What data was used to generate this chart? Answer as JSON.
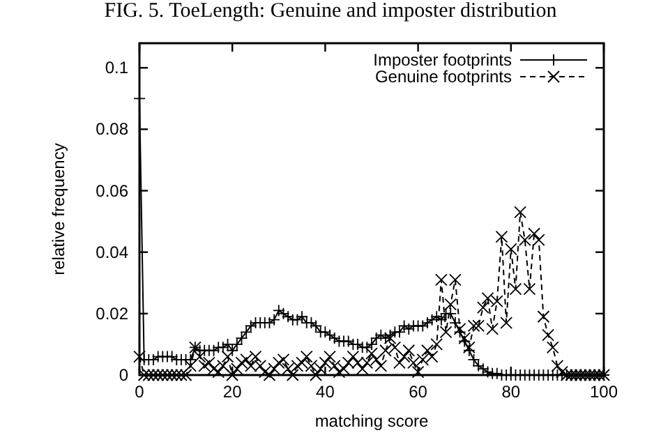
{
  "chart_data": {
    "type": "line",
    "title": "FIG. 5. ToeLength: Genuine and imposter distribution",
    "xlabel": "matching score",
    "ylabel": "relative frequency",
    "x": [
      0,
      1,
      2,
      3,
      4,
      5,
      6,
      7,
      8,
      9,
      10,
      11,
      12,
      13,
      14,
      15,
      16,
      17,
      18,
      19,
      20,
      21,
      22,
      23,
      24,
      25,
      26,
      27,
      28,
      29,
      30,
      31,
      32,
      33,
      34,
      35,
      36,
      37,
      38,
      39,
      40,
      41,
      42,
      43,
      44,
      45,
      46,
      47,
      48,
      49,
      50,
      51,
      52,
      53,
      54,
      55,
      56,
      57,
      58,
      59,
      60,
      61,
      62,
      63,
      64,
      65,
      66,
      67,
      68,
      69,
      70,
      71,
      72,
      73,
      74,
      75,
      76,
      77,
      78,
      79,
      80,
      81,
      82,
      83,
      84,
      85,
      86,
      87,
      88,
      89,
      90,
      91,
      92,
      93,
      94,
      95,
      96,
      97,
      98,
      99,
      100
    ],
    "series": [
      {
        "name": "Imposter footprints",
        "color": "#000000",
        "line_style": "solid",
        "marker": "plus",
        "values": [
          0.09,
          0.005,
          0.005,
          0.005,
          0.006,
          0.006,
          0.006,
          0.006,
          0.005,
          0.005,
          0.005,
          0.005,
          0.009,
          0.008,
          0.008,
          0.008,
          0.008,
          0.009,
          0.009,
          0.01,
          0.008,
          0.01,
          0.012,
          0.014,
          0.016,
          0.017,
          0.017,
          0.017,
          0.017,
          0.018,
          0.021,
          0.02,
          0.019,
          0.018,
          0.018,
          0.019,
          0.017,
          0.017,
          0.016,
          0.014,
          0.014,
          0.013,
          0.012,
          0.011,
          0.011,
          0.011,
          0.01,
          0.01,
          0.009,
          0.009,
          0.01,
          0.012,
          0.013,
          0.012,
          0.013,
          0.014,
          0.014,
          0.016,
          0.015,
          0.016,
          0.016,
          0.016,
          0.017,
          0.018,
          0.019,
          0.018,
          0.02,
          0.02,
          0.017,
          0.014,
          0.011,
          0.008,
          0.005,
          0.003,
          0.002,
          0.001,
          0.0005,
          0.0005,
          0,
          0,
          0,
          0,
          0,
          0,
          0,
          0,
          0,
          0,
          0,
          0,
          0,
          0,
          0,
          0,
          0,
          0,
          0,
          0,
          0,
          0,
          0
        ]
      },
      {
        "name": "Genuine footprints",
        "color": "#000000",
        "line_style": "dashed",
        "marker": "cross",
        "values": [
          0.006,
          0,
          0,
          0,
          0,
          0,
          0,
          0,
          0,
          0,
          0,
          0.003,
          0.009,
          0.006,
          0.003,
          0.004,
          0.002,
          0.001,
          0.003,
          0.006,
          0,
          0.002,
          0.004,
          0.005,
          0.003,
          0.006,
          0.003,
          0.001,
          0,
          0.002,
          0.004,
          0.005,
          0.002,
          0,
          0.003,
          0.004,
          0.006,
          0.003,
          0,
          0.002,
          0.004,
          0.006,
          0.003,
          0.001,
          0.002,
          0.004,
          0.006,
          0.004,
          0.002,
          0.004,
          0.007,
          0.005,
          0.003,
          0.008,
          0.012,
          0.009,
          0.004,
          0.006,
          0.008,
          0.004,
          0.001,
          0.005,
          0.008,
          0.006,
          0.01,
          0.031,
          0.014,
          0.023,
          0.031,
          0.015,
          0.012,
          0.009,
          0.016,
          0.016,
          0.022,
          0.025,
          0.015,
          0.024,
          0.045,
          0.017,
          0.041,
          0.028,
          0.053,
          0.044,
          0.028,
          0.046,
          0.044,
          0.019,
          0.013,
          0.009,
          0.003,
          0.001,
          0,
          0,
          0,
          0,
          0,
          0,
          0,
          0,
          0
        ]
      }
    ],
    "xlim": [
      0,
      100
    ],
    "xticks": [
      0,
      20,
      40,
      60,
      80,
      100
    ],
    "ylim": [
      0,
      0.108
    ],
    "yticks": [
      0,
      0.02,
      0.04,
      0.06,
      0.08,
      0.1
    ],
    "legend": "top right",
    "grid": false
  }
}
